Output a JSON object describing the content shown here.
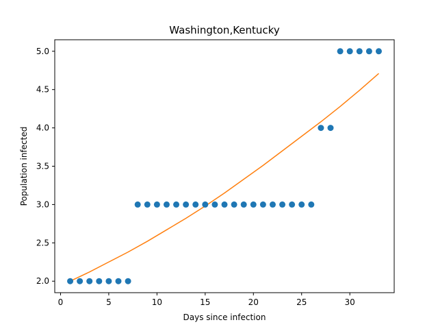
{
  "chart_data": {
    "type": "scatter",
    "title": "Washington,Kentucky",
    "xlabel": "Days since infection",
    "ylabel": "Population infected",
    "xlim": [
      -0.6,
      34.6
    ],
    "ylim": [
      1.85,
      5.15
    ],
    "xticks": [
      0,
      5,
      10,
      15,
      20,
      25,
      30
    ],
    "yticks": [
      2.0,
      2.5,
      3.0,
      3.5,
      4.0,
      4.5,
      5.0
    ],
    "xtick_labels": [
      "0",
      "5",
      "10",
      "15",
      "20",
      "25",
      "30"
    ],
    "ytick_labels": [
      "2.0",
      "2.5",
      "3.0",
      "3.5",
      "4.0",
      "4.5",
      "5.0"
    ],
    "grid": false,
    "legend": "none",
    "series": [
      {
        "kind": "scatter",
        "color": "#1f77b4",
        "x": [
          1,
          2,
          3,
          4,
          5,
          6,
          7,
          8,
          9,
          10,
          11,
          12,
          13,
          14,
          15,
          16,
          17,
          18,
          19,
          20,
          21,
          22,
          23,
          24,
          25,
          26,
          27,
          28,
          29,
          30,
          31,
          32,
          33
        ],
        "y": [
          2,
          2,
          2,
          2,
          2,
          2,
          2,
          3,
          3,
          3,
          3,
          3,
          3,
          3,
          3,
          3,
          3,
          3,
          3,
          3,
          3,
          3,
          3,
          3,
          3,
          3,
          4,
          4,
          5,
          5,
          5,
          5,
          5
        ]
      },
      {
        "kind": "line",
        "color": "#ff7f0e",
        "x": [
          1,
          3,
          5,
          7,
          9,
          11,
          13,
          15,
          17,
          19,
          21,
          23,
          25,
          27,
          29,
          31,
          33
        ],
        "y": [
          2.0,
          2.12,
          2.25,
          2.38,
          2.52,
          2.67,
          2.82,
          2.98,
          3.15,
          3.33,
          3.51,
          3.7,
          3.89,
          4.08,
          4.28,
          4.49,
          4.71
        ]
      }
    ]
  }
}
